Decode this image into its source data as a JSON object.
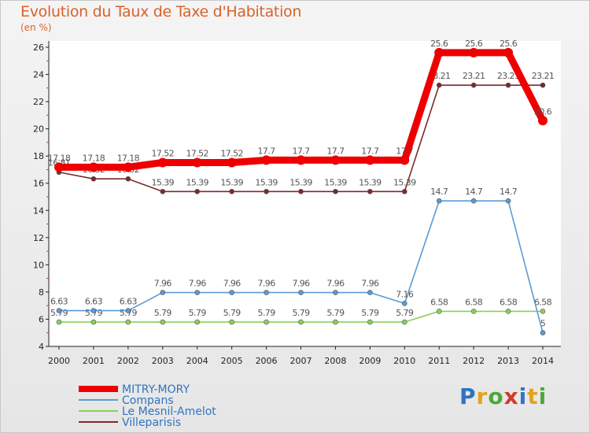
{
  "header": {
    "title": "Evolution du Taux de Taxe d'Habitation",
    "unit": "(en %)"
  },
  "logo": {
    "letters": [
      {
        "ch": "P",
        "color": "#2f74c0"
      },
      {
        "ch": "r",
        "color": "#e4a21d"
      },
      {
        "ch": "o",
        "color": "#4aa83a"
      },
      {
        "ch": "x",
        "color": "#d23a2a"
      },
      {
        "ch": "i",
        "color": "#2f74c0"
      },
      {
        "ch": "t",
        "color": "#e4a21d"
      },
      {
        "ch": "i",
        "color": "#4aa83a"
      }
    ]
  },
  "chart_data": {
    "type": "line",
    "x": [
      "2000",
      "2001",
      "2002",
      "2003",
      "2004",
      "2005",
      "2006",
      "2007",
      "2008",
      "2009",
      "2010",
      "2011",
      "2012",
      "2013",
      "2014"
    ],
    "ylim": [
      4,
      26
    ],
    "yticks": [
      4,
      6,
      8,
      10,
      12,
      14,
      16,
      18,
      20,
      22,
      24,
      26
    ],
    "grid": false,
    "legend_position": "bottom-left",
    "series": [
      {
        "name": "Villeparisis",
        "color": "#7b2a2a",
        "values": [
          16.81,
          16.32,
          16.32,
          15.39,
          15.39,
          15.39,
          15.39,
          15.39,
          15.39,
          15.39,
          15.39,
          23.21,
          23.21,
          23.21,
          23.21
        ],
        "labels": [
          "16.81",
          "16.32",
          "16.32",
          "15.39",
          "15.39",
          "15.39",
          "15.39",
          "15.39",
          "15.39",
          "15.39",
          "15.39",
          "23.21",
          "23.21",
          "23.21",
          "23.21"
        ]
      },
      {
        "name": "Le Mesnil-Amelot",
        "color": "#8ccf5e",
        "values": [
          5.79,
          5.79,
          5.79,
          5.79,
          5.79,
          5.79,
          5.79,
          5.79,
          5.79,
          5.79,
          5.79,
          6.58,
          6.58,
          6.58,
          6.58
        ],
        "labels": [
          "5.79",
          "5.79",
          "5.79",
          "5.79",
          "5.79",
          "5.79",
          "5.79",
          "5.79",
          "5.79",
          "5.79",
          "5.79",
          "6.58",
          "6.58",
          "6.58",
          "6.58"
        ]
      },
      {
        "name": "Compans",
        "color": "#5b9bd5",
        "values": [
          6.63,
          6.63,
          6.63,
          7.96,
          7.96,
          7.96,
          7.96,
          7.96,
          7.96,
          7.96,
          7.16,
          14.7,
          14.7,
          14.7,
          5
        ],
        "labels": [
          "6.63",
          "6.63",
          "6.63",
          "7.96",
          "7.96",
          "7.96",
          "7.96",
          "7.96",
          "7.96",
          "7.96",
          "7.16",
          "14.7",
          "14.7",
          "14.7",
          "5"
        ]
      },
      {
        "name": "MITRY-MORY",
        "color": "#ee0000",
        "values": [
          17.18,
          17.18,
          17.18,
          17.52,
          17.52,
          17.52,
          17.7,
          17.7,
          17.7,
          17.7,
          17.7,
          25.6,
          25.6,
          25.6,
          20.6
        ],
        "labels": [
          "17.18",
          "17.18",
          "17.18",
          "17.52",
          "17.52",
          "17.52",
          "17.7",
          "17.7",
          "17.7",
          "17.7",
          "17.7",
          "25.6",
          "25.6",
          "25.6",
          "20.6"
        ]
      }
    ],
    "legend": [
      "MITRY-MORY",
      "Compans",
      "Le Mesnil-Amelot",
      "Villeparisis"
    ]
  }
}
